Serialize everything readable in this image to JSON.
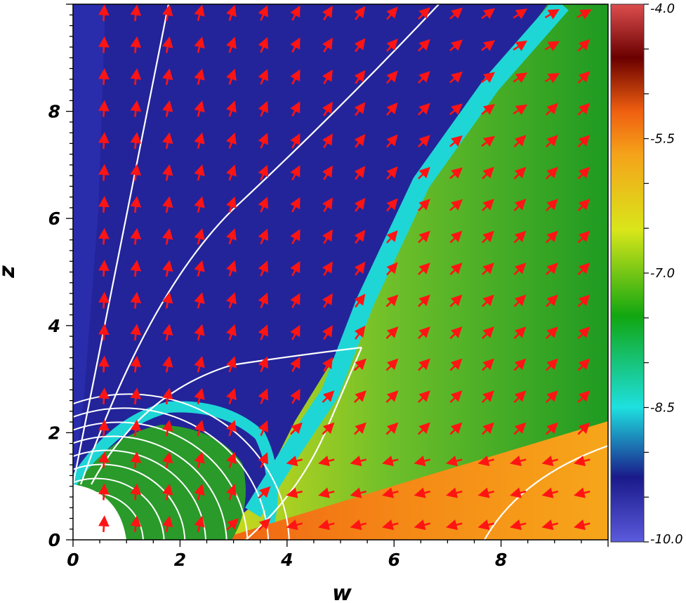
{
  "chart_data": {
    "type": "heatmap",
    "title": "",
    "xlabel": "w",
    "ylabel": "z",
    "xlim": [
      0,
      10
    ],
    "ylim": [
      0,
      10
    ],
    "x_ticks": [
      "0",
      "2",
      "4",
      "6",
      "8"
    ],
    "y_ticks": [
      "0",
      "2",
      "4",
      "6",
      "8"
    ],
    "colorbar": {
      "range": [
        -10.0,
        -4.0
      ],
      "ticks": [
        "-4.0",
        "-5.5",
        "-7.0",
        "-8.5",
        "-10.0"
      ],
      "colors": [
        "#5b5bdd",
        "#1a1a8a",
        "#1ee0e0",
        "#11a611",
        "#d9e61a",
        "#f5a31a",
        "#f06010",
        "#6a0000",
        "#dd4e4e"
      ]
    },
    "field_colors": {
      "background": "#23249a",
      "inner_blue": "#2a2fae",
      "cyan": "#1fd6d6",
      "green": "#2a9a2a",
      "yellow": "#d6dc1c",
      "orange": "#f58a16",
      "red_orange": "#f06414"
    },
    "vector_color": "#ff1414",
    "fieldline_color": "#ffffff"
  }
}
